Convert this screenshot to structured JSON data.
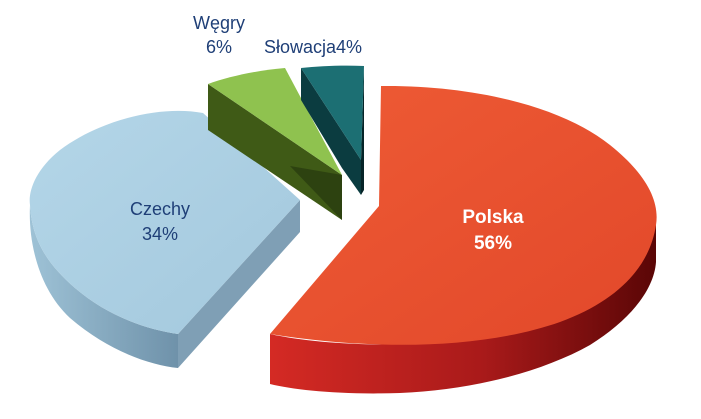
{
  "chart_data": {
    "type": "pie",
    "three_d": true,
    "exploded": true,
    "title": "",
    "slices": [
      {
        "name": "Polska",
        "value": 56,
        "label_name": "Polska",
        "label_value": "56%",
        "color_top": "#e9532f",
        "color_side": "#b31f1c",
        "color_side_dark": "#6e0808",
        "label_color": "#ffffff",
        "label_bold": true
      },
      {
        "name": "Czechy",
        "value": 34,
        "label_name": "Czechy",
        "label_value": "34%",
        "color_top": "#a8cde1",
        "color_side": "#8fb1c6",
        "color_side_dark": "#6c8fa7",
        "label_color": "#1f3f77",
        "label_bold": false
      },
      {
        "name": "Węgry",
        "value": 6,
        "label_name": "Węgry",
        "label_value": "6%",
        "color_top": "#8fc24f",
        "color_side": "#4f6f1d",
        "color_side_dark": "#2f4410",
        "label_color": "#1f3f77",
        "label_bold": false
      },
      {
        "name": "Słowacja",
        "value": 4,
        "label_name": "Słowacja",
        "label_value": "4%",
        "color_top": "#1c6f73",
        "color_side": "#0b3f44",
        "color_side_dark": "#062a2d",
        "label_color": "#1f3f77",
        "label_bold": false
      }
    ]
  }
}
